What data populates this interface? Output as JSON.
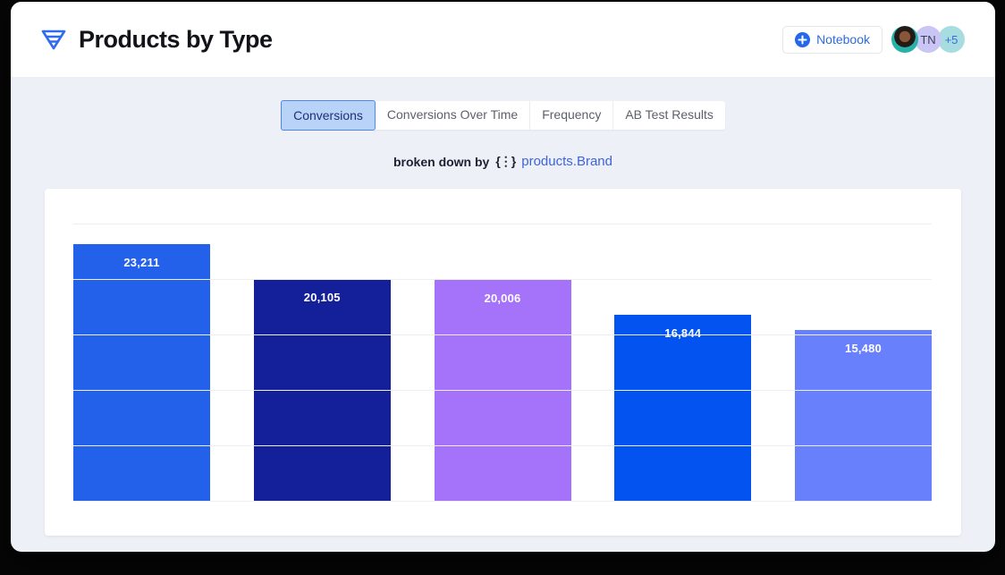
{
  "header": {
    "title": "Products by Type",
    "notebook_button": "Notebook",
    "avatars": [
      {
        "type": "photo",
        "label": ""
      },
      {
        "type": "initials",
        "label": "TN"
      },
      {
        "type": "overflow-count",
        "label": "+5"
      }
    ]
  },
  "tabs": [
    {
      "label": "Conversions",
      "selected": true
    },
    {
      "label": "Conversions Over Time",
      "selected": false
    },
    {
      "label": "Frequency",
      "selected": false
    },
    {
      "label": "AB Test Results",
      "selected": false
    }
  ],
  "breakdown": {
    "prefix": "broken down by",
    "field_icon": "{⋮}",
    "field": "products.Brand"
  },
  "chart_data": {
    "type": "bar",
    "title": "",
    "xlabel": "",
    "ylabel": "",
    "categories": [
      "",
      "",
      "",
      "",
      ""
    ],
    "values": [
      23211,
      20105,
      20006,
      16844,
      15480
    ],
    "value_labels": [
      "23,211",
      "20,105",
      "20,006",
      "16,844",
      "15,480"
    ],
    "bar_colors": [
      "#2361ea",
      "#13209a",
      "#a572fa",
      "#0353f1",
      "#6880fb"
    ],
    "ylim": [
      0,
      25000
    ],
    "grid": true,
    "gridline_interval": 5000,
    "legend": false
  },
  "colors": {
    "accent_blue": "#2d6ae3",
    "selected_tab_bg": "#b9d2f8",
    "selected_tab_border": "#4e87e6",
    "page_bg": "#eef0f7",
    "gridline": "#ededf2"
  }
}
